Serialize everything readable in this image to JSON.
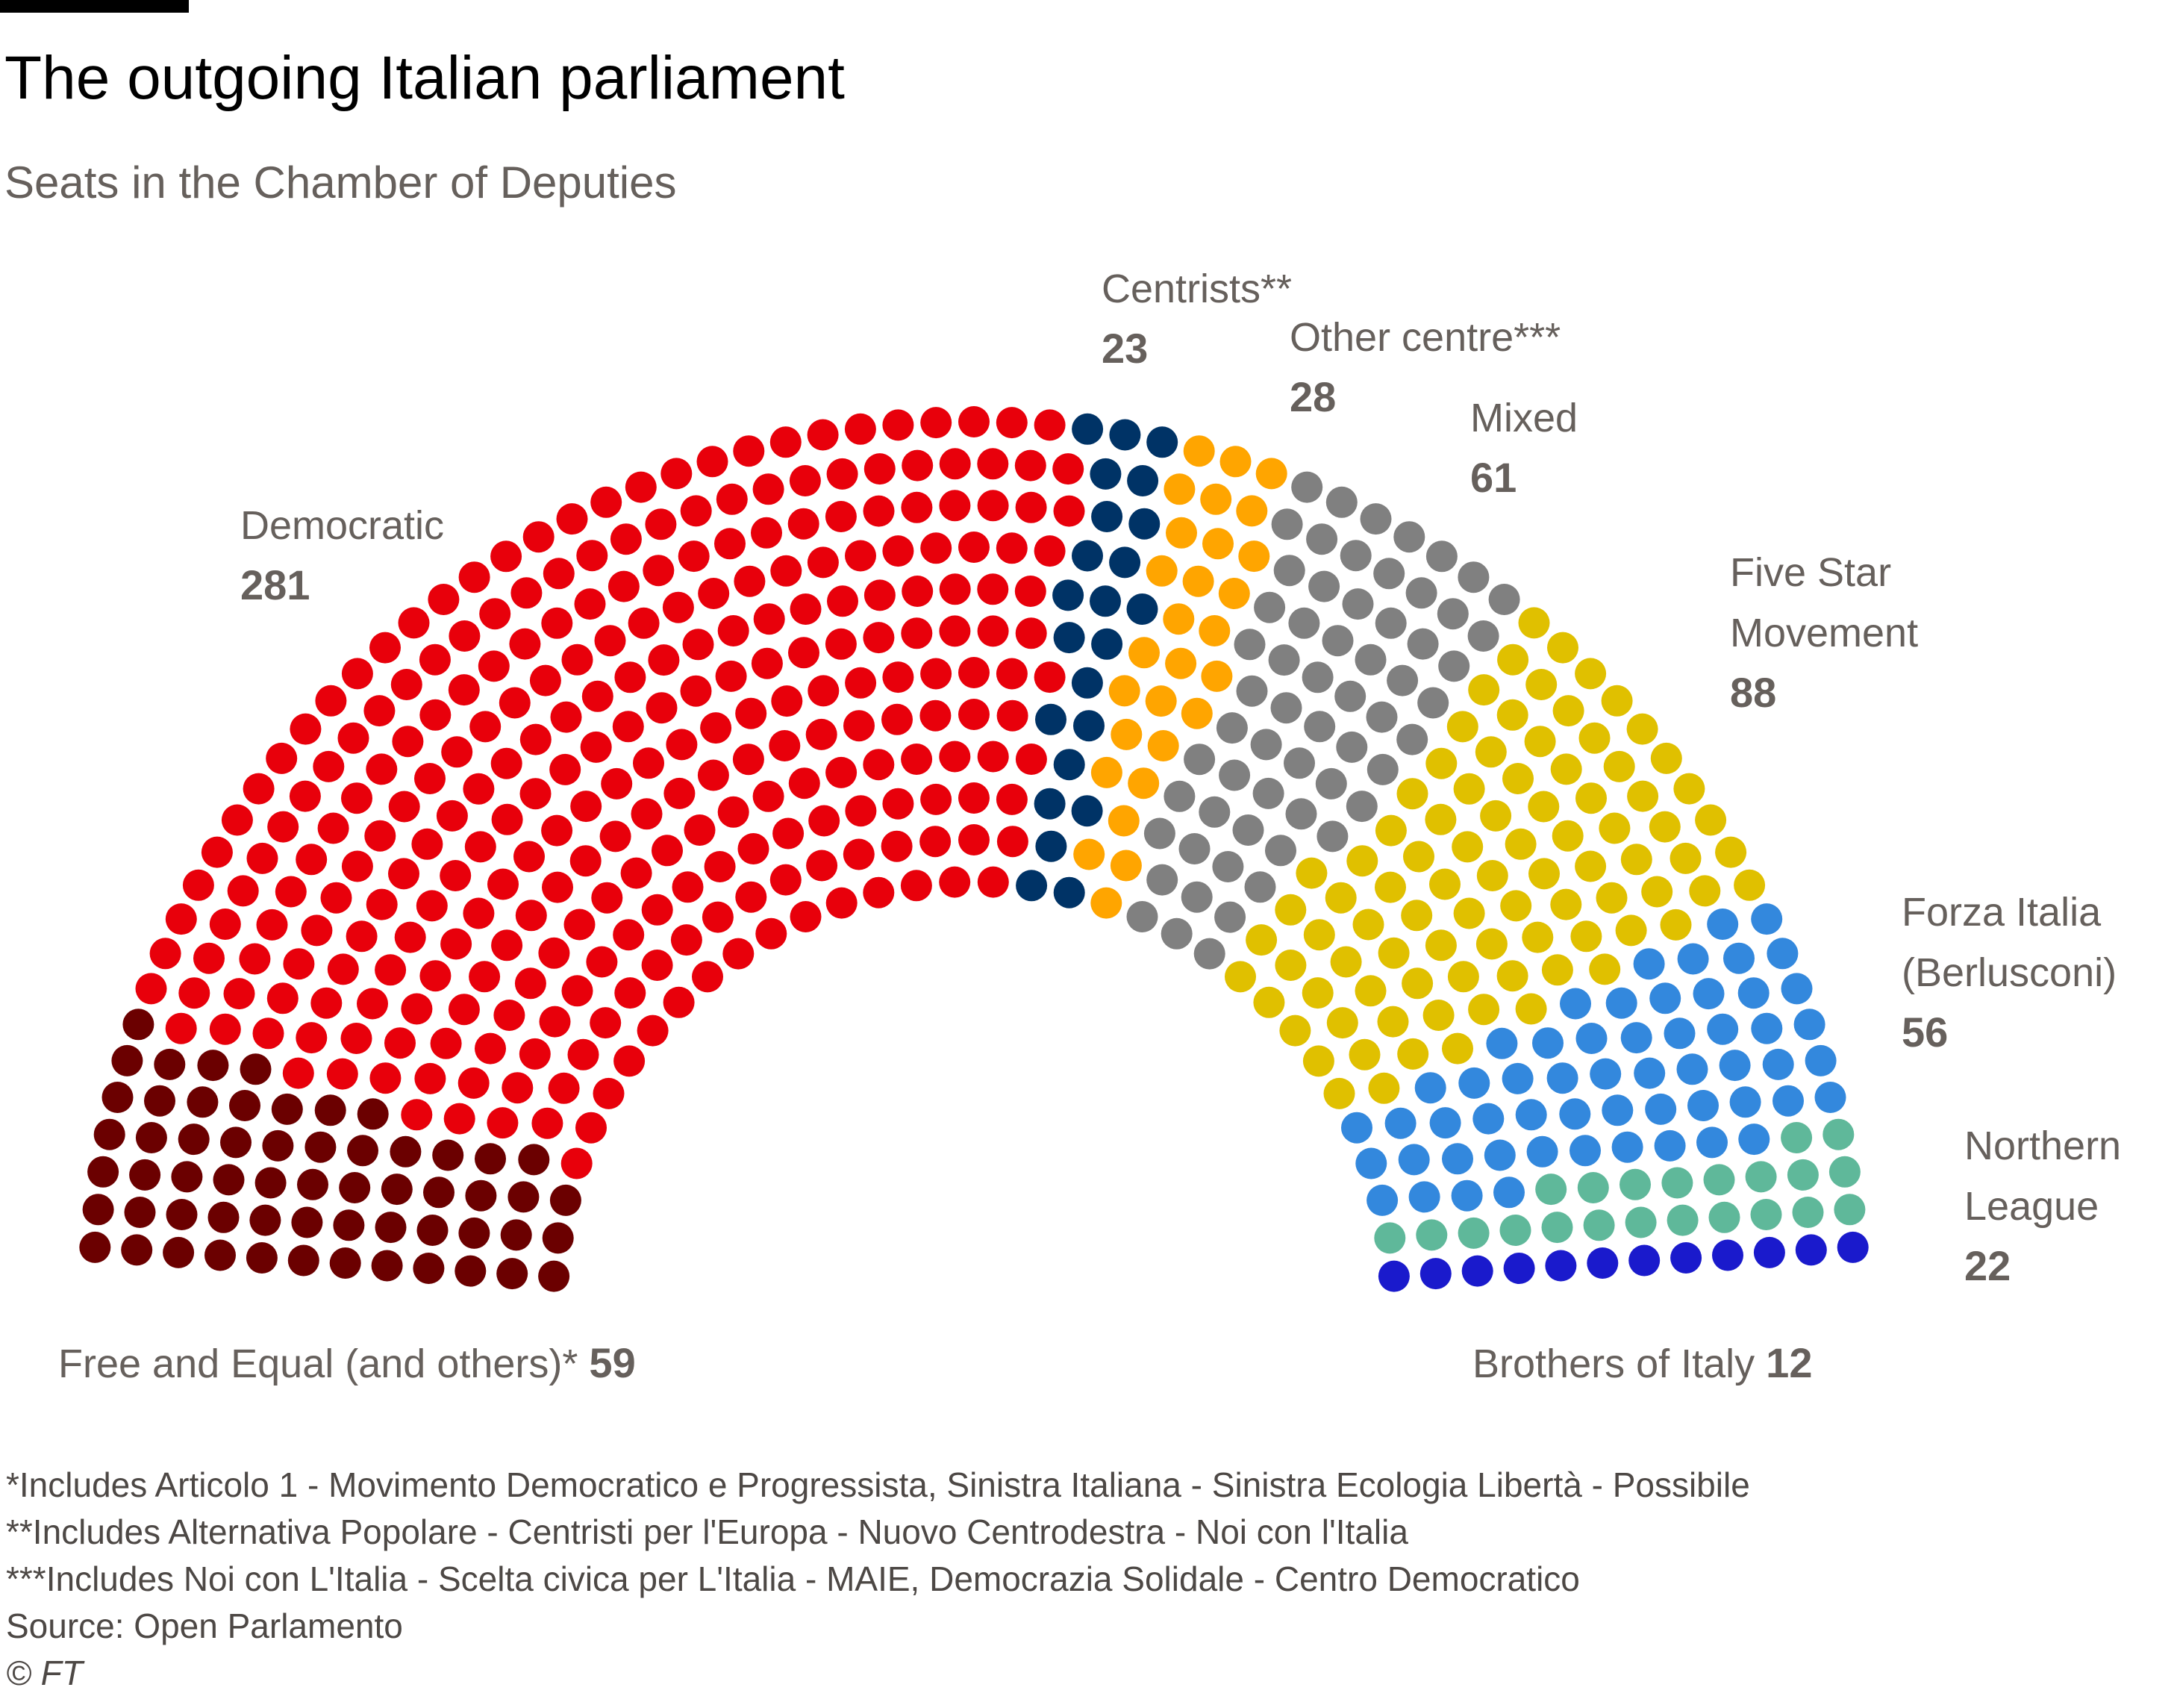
{
  "header": {
    "title": "The outgoing Italian parliament",
    "subtitle": "Seats in the Chamber of Deputies"
  },
  "footnotes": [
    "*Includes Articolo 1 - Movimento Democratico e Progressista, Sinistra Italiana - Sinistra Ecologia Libertà - Possibile",
    "**Includes Alternativa Popolare - Centristi per l'Europa - Nuovo Centrodestra - Noi con l'Italia",
    "***Includes Noi con L'Italia - Scelta civica per L'Italia - MAIE, Democrazia Solidale - Centro Democratico"
  ],
  "source": "Source: Open Parlamento",
  "copyright": "© FT",
  "chart_data": {
    "type": "parliament",
    "total_seats": 630,
    "parties": [
      {
        "label": "Free and Equal (and others)*",
        "lines": [
          "Free and Equal (and others)*"
        ],
        "seats": 59,
        "color": "#6b0000"
      },
      {
        "label": "Democratic",
        "lines": [
          "Democratic"
        ],
        "seats": 281,
        "color": "#e8000b"
      },
      {
        "label": "Centrists**",
        "lines": [
          "Centrists**"
        ],
        "seats": 23,
        "color": "#003366"
      },
      {
        "label": "Other centre***",
        "lines": [
          "Other centre***"
        ],
        "seats": 28,
        "color": "#ffa500"
      },
      {
        "label": "Mixed",
        "lines": [
          "Mixed"
        ],
        "seats": 61,
        "color": "#808080"
      },
      {
        "label": "Five Star Movement",
        "lines": [
          "Five Star",
          "Movement"
        ],
        "seats": 88,
        "color": "#e0c000"
      },
      {
        "label": "Forza Italia (Berlusconi)",
        "lines": [
          "Forza Italia",
          "(Berlusconi)"
        ],
        "seats": 56,
        "color": "#3388dd"
      },
      {
        "label": "Northern League",
        "lines": [
          "Northern",
          "League"
        ],
        "seats": 22,
        "color": "#5fb89a"
      },
      {
        "label": "Brothers of Italy",
        "lines": [
          "Brothers of Italy"
        ],
        "seats": 12,
        "color": "#1a1acc"
      }
    ]
  }
}
